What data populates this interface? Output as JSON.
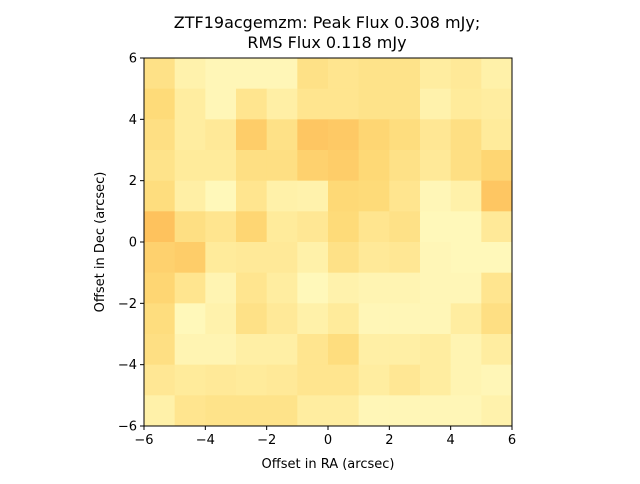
{
  "chart_data": {
    "type": "heatmap",
    "title_line1": "ZTF19acgemzm: Peak Flux 0.308 mJy;",
    "title_line2": "RMS Flux 0.118 mJy",
    "xlabel": "Offset in RA (arcsec)",
    "ylabel": "Offset in Dec (arcsec)",
    "xlim": [
      -6,
      6
    ],
    "ylim": [
      -6,
      6
    ],
    "xticks": [
      -6,
      -4,
      -2,
      0,
      2,
      4,
      6
    ],
    "yticks": [
      -6,
      -4,
      -2,
      0,
      2,
      4,
      6
    ],
    "xtick_labels": [
      "−6",
      "−4",
      "−2",
      "0",
      "2",
      "4",
      "6"
    ],
    "ytick_labels": [
      "−6",
      "−4",
      "−2",
      "0",
      "2",
      "4",
      "6"
    ],
    "colormap": "YlOrRd-like (light yellow to orange)",
    "grid": false,
    "nx": 12,
    "ny": 12,
    "cell_size_arcsec": 1,
    "rows_top_to_bottom_intensity": [
      [
        0.4,
        0.18,
        0.12,
        0.12,
        0.12,
        0.4,
        0.35,
        0.38,
        0.38,
        0.25,
        0.3,
        0.2
      ],
      [
        0.48,
        0.25,
        0.12,
        0.35,
        0.22,
        0.35,
        0.35,
        0.38,
        0.38,
        0.18,
        0.28,
        0.25
      ],
      [
        0.42,
        0.25,
        0.3,
        0.58,
        0.4,
        0.62,
        0.6,
        0.52,
        0.45,
        0.32,
        0.42,
        0.28
      ],
      [
        0.38,
        0.28,
        0.28,
        0.42,
        0.42,
        0.55,
        0.58,
        0.5,
        0.4,
        0.3,
        0.42,
        0.52
      ],
      [
        0.45,
        0.22,
        0.1,
        0.35,
        0.2,
        0.18,
        0.5,
        0.48,
        0.35,
        0.12,
        0.2,
        0.62
      ],
      [
        0.65,
        0.42,
        0.35,
        0.52,
        0.28,
        0.32,
        0.48,
        0.35,
        0.4,
        0.1,
        0.1,
        0.3
      ],
      [
        0.55,
        0.58,
        0.28,
        0.3,
        0.3,
        0.2,
        0.4,
        0.3,
        0.32,
        0.12,
        0.1,
        0.1
      ],
      [
        0.52,
        0.35,
        0.15,
        0.35,
        0.25,
        0.1,
        0.18,
        0.15,
        0.15,
        0.12,
        0.12,
        0.35
      ],
      [
        0.45,
        0.1,
        0.18,
        0.4,
        0.3,
        0.2,
        0.28,
        0.12,
        0.12,
        0.12,
        0.25,
        0.42
      ],
      [
        0.42,
        0.15,
        0.15,
        0.22,
        0.22,
        0.35,
        0.45,
        0.22,
        0.22,
        0.25,
        0.15,
        0.25
      ],
      [
        0.32,
        0.28,
        0.3,
        0.28,
        0.3,
        0.35,
        0.35,
        0.25,
        0.32,
        0.25,
        0.15,
        0.12
      ],
      [
        0.2,
        0.35,
        0.38,
        0.38,
        0.38,
        0.25,
        0.25,
        0.12,
        0.12,
        0.12,
        0.12,
        0.18
      ]
    ]
  }
}
